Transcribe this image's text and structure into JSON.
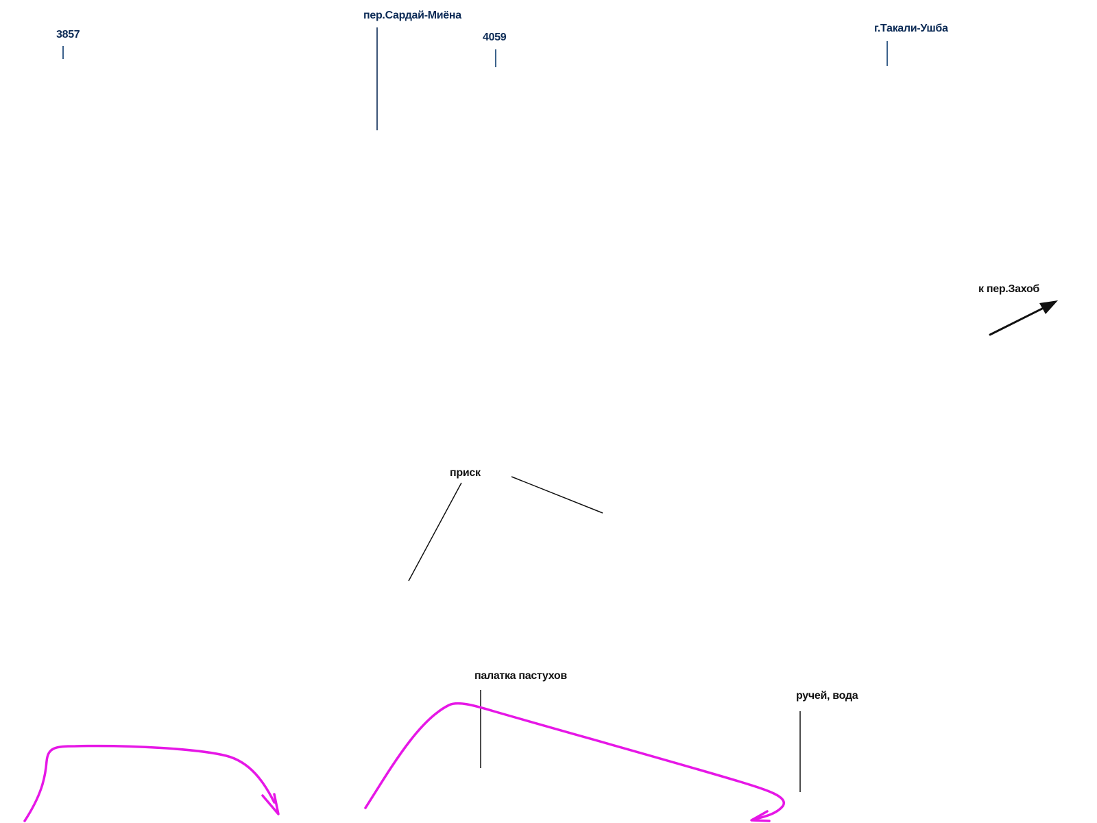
{
  "map": {
    "labels": {
      "spot_3857": "3857",
      "pass_sarday_miyona": "пер.Сардай-Миёна",
      "spot_4059": "4059",
      "peak_takali_ushba": "г.Такали-Ушба",
      "to_pass_zakhob": "к пер.Захоб",
      "prisk": "приск",
      "shepherds_tent": "палатка пастухов",
      "stream_water": "ручей, вода"
    },
    "colors": {
      "peak_label": "#0b2a55",
      "peak_leader": "#0b3a6e",
      "note_label": "#111111",
      "leader": "#111111",
      "route": "#e617e6"
    },
    "icons": [
      "direction-arrow-icon",
      "route-arrow-icon"
    ]
  }
}
